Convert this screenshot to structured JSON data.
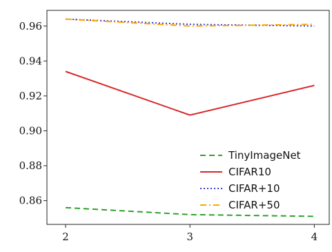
{
  "chart_data": {
    "type": "line",
    "x": [
      2,
      3,
      4
    ],
    "xticks": [
      "2",
      "3",
      "4"
    ],
    "yticks": [
      "0.86",
      "0.88",
      "0.90",
      "0.92",
      "0.94",
      "0.96"
    ],
    "ytick_values": [
      0.86,
      0.88,
      0.9,
      0.92,
      0.94,
      0.96
    ],
    "xlim": [
      1.85,
      4.12
    ],
    "ylim": [
      0.8464,
      0.969
    ],
    "grid": false,
    "legend_position": "lower right",
    "series": [
      {
        "name": "TinyImageNet",
        "values": [
          0.856,
          0.852,
          0.851
        ],
        "color": "#2ca02c",
        "dash": "dashed"
      },
      {
        "name": "CIFAR10",
        "values": [
          0.934,
          0.909,
          0.926
        ],
        "color": "#d62728",
        "dash": "solid"
      },
      {
        "name": "CIFAR+10",
        "values": [
          0.964,
          0.961,
          0.96
        ],
        "color": "#3b3bc8",
        "dash": "dotted"
      },
      {
        "name": "CIFAR+50",
        "values": [
          0.964,
          0.96,
          0.961
        ],
        "color": "#ffa500",
        "dash": "dashdot"
      }
    ]
  }
}
